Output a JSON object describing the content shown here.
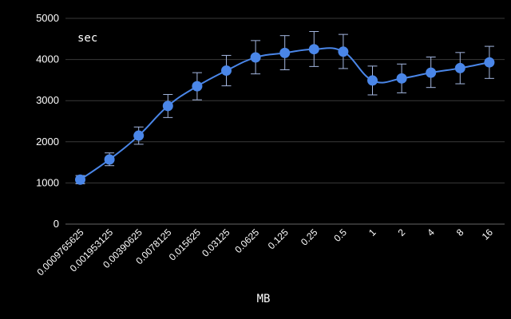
{
  "chart_data": {
    "type": "line",
    "categories": [
      "0.0009765625",
      "0.001953125",
      "0.00390625",
      "0.0078125",
      "0.015625",
      "0.03125",
      "0.0625",
      "0.125",
      "0.25",
      "0.5",
      "1",
      "2",
      "4",
      "8",
      "16"
    ],
    "series": [
      {
        "values": [
          1080,
          1570,
          2150,
          2870,
          3350,
          3730,
          4050,
          4160,
          4250,
          4190,
          3490,
          3540,
          3680,
          3790,
          3930
        ],
        "error_low": [
          980,
          1420,
          1940,
          2590,
          3020,
          3360,
          3650,
          3750,
          3830,
          3780,
          3140,
          3190,
          3320,
          3410,
          3540
        ],
        "error_high": [
          1180,
          1730,
          2360,
          3150,
          3680,
          4100,
          4460,
          4580,
          4680,
          4610,
          3840,
          3890,
          4060,
          4170,
          4320
        ]
      }
    ],
    "unit_label": "sec",
    "xlabel": "MB",
    "ylabel": "",
    "ylim": [
      0,
      5000
    ],
    "yticks": [
      0,
      1000,
      2000,
      3000,
      4000,
      5000
    ],
    "grid": true,
    "colors": {
      "line": "#4a86e8",
      "marker": "#4a86e8",
      "error_bar": "#a4b7e0",
      "grid": "#3a3a3a",
      "background": "#000000"
    }
  }
}
